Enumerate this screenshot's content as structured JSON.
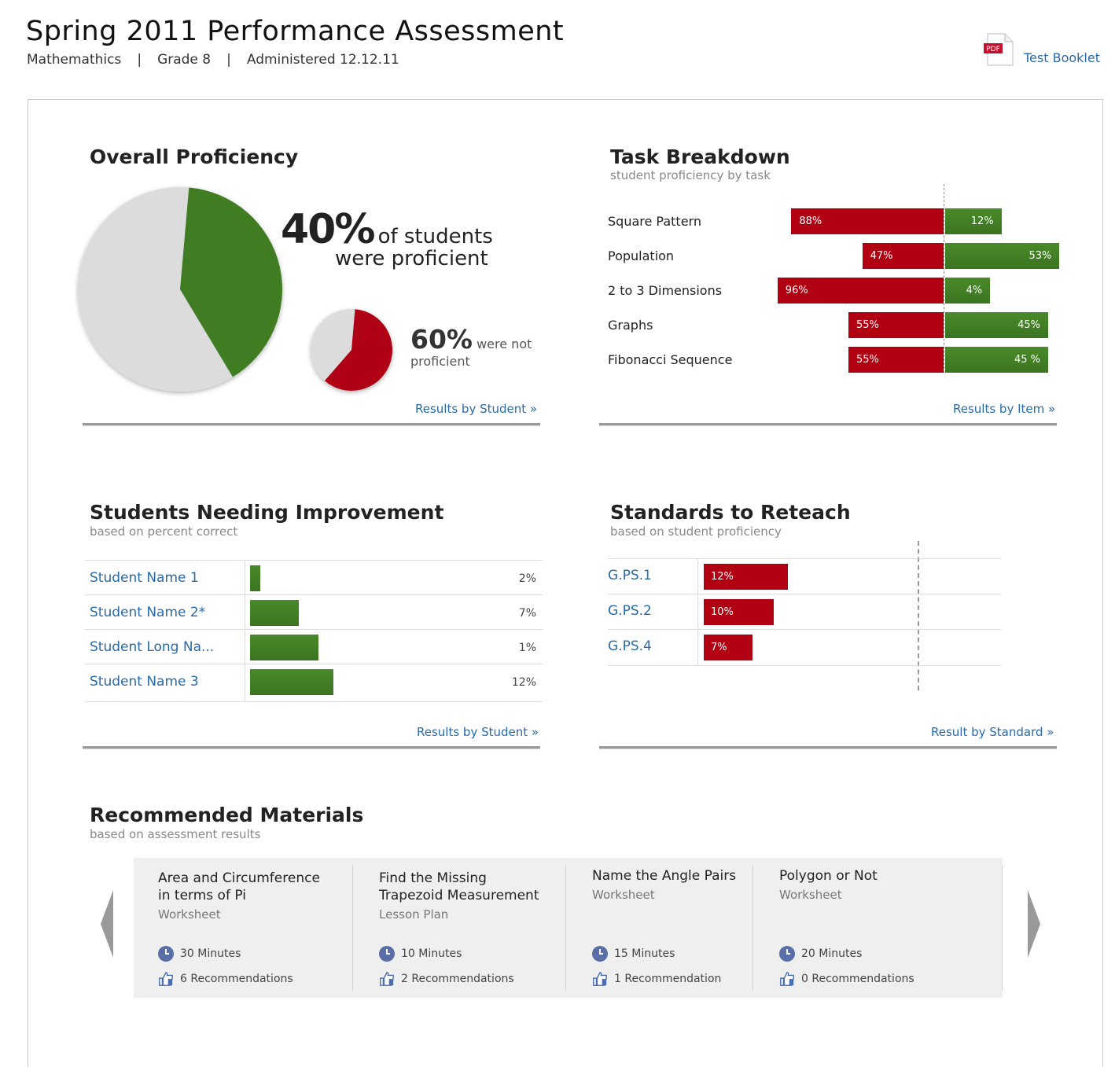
{
  "header": {
    "title": "Spring 2011 Performance Assessment",
    "subject": "Mathemathics",
    "grade": "Grade 8",
    "administered": "Administered 12.12.11",
    "separator": "|",
    "test_booklet": "Test Booklet",
    "pdf_label": "PDF"
  },
  "overall": {
    "title": "Overall Proficiency",
    "proficient_pct": "40%",
    "proficient_text_1": "of students",
    "proficient_text_2": "were proficient",
    "not_pct": "60%",
    "not_text_1": "were not",
    "not_text_2": "proficient",
    "proficient_value": 40,
    "not_proficient_value": 60,
    "link": "Results by Student »",
    "colors": {
      "proficient": "#3f7d22",
      "not": "#b00012",
      "rest": "#dcdcdc"
    }
  },
  "tasks": {
    "title": "Task Breakdown",
    "subtitle": "student proficiency by task",
    "link": "Results by Item »",
    "items": [
      {
        "name": "Square Pattern",
        "not": 88,
        "not_label": "88%",
        "prof": 12,
        "prof_label": "12%"
      },
      {
        "name": "Population",
        "not": 47,
        "not_label": "47%",
        "prof": 53,
        "prof_label": "53%"
      },
      {
        "name": "2 to 3 Dimensions",
        "not": 96,
        "not_label": "96%",
        "prof": 4,
        "prof_label": "4%"
      },
      {
        "name": "Graphs",
        "not": 55,
        "not_label": "55%",
        "prof": 45,
        "prof_label": "45%"
      },
      {
        "name": "Fibonacci Sequence",
        "not": 55,
        "not_label": "55%",
        "prof": 45,
        "prof_label": "45 %"
      }
    ]
  },
  "students": {
    "title": "Students Needing Improvement",
    "subtitle": "based on percent correct",
    "link": "Results by Student »",
    "items": [
      {
        "name": "Student Name 1",
        "value": "2%",
        "bar": 0.12
      },
      {
        "name": "Student Name 2*",
        "value": "7%",
        "bar": 0.55
      },
      {
        "name": "Student Long Na...",
        "value": "1%",
        "bar": 0.78
      },
      {
        "name": "Student Name 3",
        "value": "12%",
        "bar": 0.95
      }
    ]
  },
  "standards": {
    "title": "Standards to Reteach",
    "subtitle": "based on student proficiency",
    "link": "Result by Standard »",
    "items": [
      {
        "name": "G.PS.1",
        "value": 12,
        "label": "12%"
      },
      {
        "name": "G.PS.2",
        "value": 10,
        "label": "10%"
      },
      {
        "name": "G.PS.4",
        "value": 7,
        "label": "7%"
      }
    ]
  },
  "materials": {
    "title": "Recommended Materials",
    "subtitle": "based on assessment results",
    "items": [
      {
        "title": "Area and Circumference in terms of Pi",
        "type": "Worksheet",
        "time": "30 Minutes",
        "recs": "6 Recommendations"
      },
      {
        "title": "Find the Missing Trapezoid Measurement",
        "type": "Lesson Plan",
        "time": "10 Minutes",
        "recs": "2 Recommendations"
      },
      {
        "title": "Name the Angle Pairs",
        "type": "Worksheet",
        "time": "15 Minutes",
        "recs": "1 Recommendation"
      },
      {
        "title": "Polygon or Not",
        "type": "Worksheet",
        "time": "20 Minutes",
        "recs": "0 Recommendations"
      }
    ]
  }
}
